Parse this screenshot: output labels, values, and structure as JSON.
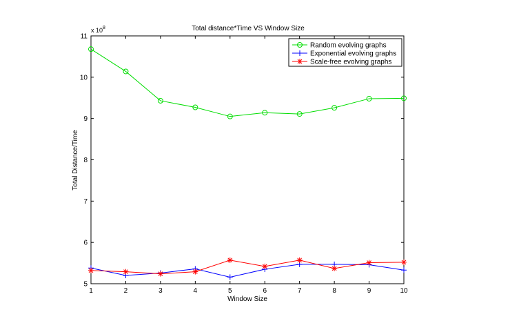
{
  "chart_data": {
    "type": "line",
    "title": "Total distance*Time VS Window Size",
    "xlabel": "Window Size",
    "ylabel": "Total Distance/Time",
    "y_multiplier_label": "x 10",
    "y_multiplier_exponent": "8",
    "x": [
      1,
      2,
      3,
      4,
      5,
      6,
      7,
      8,
      9,
      10
    ],
    "x_ticks": [
      1,
      2,
      3,
      4,
      5,
      6,
      7,
      8,
      9,
      10
    ],
    "y_ticks": [
      5,
      6,
      7,
      8,
      9,
      10,
      11
    ],
    "xlim": [
      1,
      10
    ],
    "ylim": [
      5,
      11
    ],
    "grid": false,
    "legend_position": "top-right",
    "series": [
      {
        "name": "Random evolving graphs",
        "color": "#00dd00",
        "marker": "circle",
        "values": [
          10.68,
          10.14,
          9.43,
          9.27,
          9.05,
          9.14,
          9.11,
          9.26,
          9.48,
          9.49
        ]
      },
      {
        "name": "Exponential evolving graphs",
        "color": "#0000ff",
        "marker": "plus",
        "values": [
          5.38,
          5.2,
          5.26,
          5.36,
          5.16,
          5.35,
          5.47,
          5.47,
          5.46,
          5.33
        ]
      },
      {
        "name": "Scale-free evolving graphs",
        "color": "#ff0000",
        "marker": "star",
        "values": [
          5.32,
          5.29,
          5.24,
          5.29,
          5.57,
          5.42,
          5.57,
          5.37,
          5.51,
          5.52
        ]
      }
    ]
  }
}
